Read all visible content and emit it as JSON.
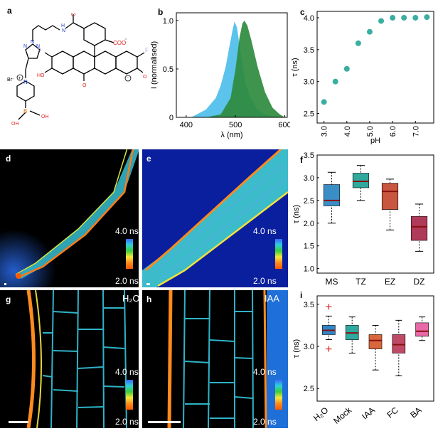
{
  "panel_labels": {
    "a": "a",
    "b": "b",
    "c": "c",
    "d": "d",
    "e": "e",
    "f": "f",
    "g": "g",
    "h": "h",
    "i": "i"
  },
  "structure": {
    "atoms": {
      "O": "O",
      "N": "N",
      "H": "H",
      "F": "F",
      "Br": "Br",
      "B": "B",
      "OH": "OH",
      "HO": "HO",
      "COO": "COO",
      "minus": "⁻",
      "plus": "+"
    }
  },
  "colorbar": {
    "top": "4.0 ns",
    "bottom": "2.0 ns"
  },
  "conditions": {
    "g": "H₂O",
    "h": "IAA"
  },
  "colors": {
    "blue_fill": "#5bc3ec",
    "green_fill": "#2e8b3d",
    "teal": "#3aaea0",
    "ms": "#3a8ec5",
    "tz": "#2fa99c",
    "ez": "#c9573f",
    "dz": "#b03a5a",
    "h2o": "#2e86c6",
    "mock": "#2fa9a0",
    "iaa": "#d9673c",
    "fc": "#c04a66",
    "ba": "#e86aa8"
  },
  "chart_data": [
    {
      "id": "b",
      "type": "area",
      "xlabel": "λ (nm)",
      "ylabel": "I (normalised)",
      "xlim": [
        380,
        605
      ],
      "ylim": [
        0,
        1.08
      ],
      "xticks": [
        400,
        500,
        600
      ],
      "yticks": [
        0,
        0.5,
        1.0
      ],
      "yticklabels": [
        "0",
        "0.5",
        "1.0"
      ],
      "series": [
        {
          "x": [
            410,
            440,
            460,
            470,
            480,
            488,
            494,
            498,
            503,
            510,
            520,
            530,
            545,
            560,
            580,
            600
          ],
          "y": [
            0,
            0.08,
            0.2,
            0.33,
            0.52,
            0.74,
            0.9,
            0.99,
            0.93,
            0.68,
            0.36,
            0.2,
            0.08,
            0.03,
            0.01,
            0
          ]
        },
        {
          "x": [
            440,
            470,
            490,
            500,
            508,
            514,
            518,
            524,
            532,
            545,
            560,
            575,
            590,
            600
          ],
          "y": [
            0,
            0.03,
            0.2,
            0.5,
            0.82,
            0.97,
            1.0,
            0.95,
            0.8,
            0.52,
            0.26,
            0.1,
            0.03,
            0
          ]
        }
      ]
    },
    {
      "id": "c",
      "type": "scatter",
      "xlabel": "pH",
      "ylabel": "τ (ns)",
      "xlim": [
        2.7,
        7.8
      ],
      "ylim": [
        2.35,
        4.1
      ],
      "xticks": [
        3.0,
        4.0,
        5.0,
        6.0,
        7.0
      ],
      "xticklabels": [
        "3.0",
        "4.0",
        "5.0",
        "6.0",
        "7.0"
      ],
      "yticks": [
        2.5,
        3.0,
        3.5,
        4.0
      ],
      "yticklabels": [
        "2.5",
        "3.0",
        "3.5",
        "4.0"
      ],
      "x": [
        3.0,
        3.5,
        4.0,
        4.5,
        5.0,
        5.5,
        6.0,
        6.5,
        7.0,
        7.5
      ],
      "y": [
        2.68,
        3.0,
        3.2,
        3.6,
        3.78,
        3.95,
        4.0,
        4.0,
        4.0,
        4.01
      ]
    },
    {
      "id": "f",
      "type": "box",
      "ylabel": "τ (ns)",
      "ylim": [
        0.9,
        3.5
      ],
      "yticks": [
        1.0,
        1.5,
        2.0,
        2.5,
        3.0,
        3.5
      ],
      "yticklabels": [
        "1.0",
        "1.5",
        "2.0",
        "2.5",
        "3.0",
        "3.5"
      ],
      "categories": [
        "MS",
        "TZ",
        "EZ",
        "DZ"
      ],
      "boxes": [
        {
          "min": 2.0,
          "q1": 2.38,
          "median": 2.5,
          "q3": 2.85,
          "max": 3.12
        },
        {
          "min": 2.5,
          "q1": 2.78,
          "median": 2.92,
          "q3": 3.1,
          "max": 3.27
        },
        {
          "min": 1.85,
          "q1": 2.3,
          "median": 2.7,
          "q3": 2.88,
          "max": 2.97
        },
        {
          "min": 1.38,
          "q1": 1.62,
          "median": 1.92,
          "q3": 2.15,
          "max": 2.42
        }
      ]
    },
    {
      "id": "i",
      "type": "box",
      "ylabel": "τ (ns)",
      "ylim": [
        2.35,
        3.6
      ],
      "yticks": [
        2.5,
        3.0,
        3.5
      ],
      "yticklabels": [
        "2.5",
        "3.0",
        "3.5"
      ],
      "categories": [
        "H₂O",
        "Mock",
        "IAA",
        "FC",
        "BA"
      ],
      "boxes": [
        {
          "min": 3.08,
          "q1": 3.14,
          "median": 3.19,
          "q3": 3.25,
          "max": 3.36,
          "outliers": [
            3.47,
            2.97
          ]
        },
        {
          "min": 2.92,
          "q1": 3.08,
          "median": 3.16,
          "q3": 3.25,
          "max": 3.35
        },
        {
          "min": 2.72,
          "q1": 2.97,
          "median": 3.07,
          "q3": 3.14,
          "max": 3.25
        },
        {
          "min": 2.65,
          "q1": 2.92,
          "median": 3.02,
          "q3": 3.14,
          "max": 3.31
        },
        {
          "min": 3.07,
          "q1": 3.12,
          "median": 3.18,
          "q3": 3.28,
          "max": 3.35
        }
      ]
    }
  ]
}
